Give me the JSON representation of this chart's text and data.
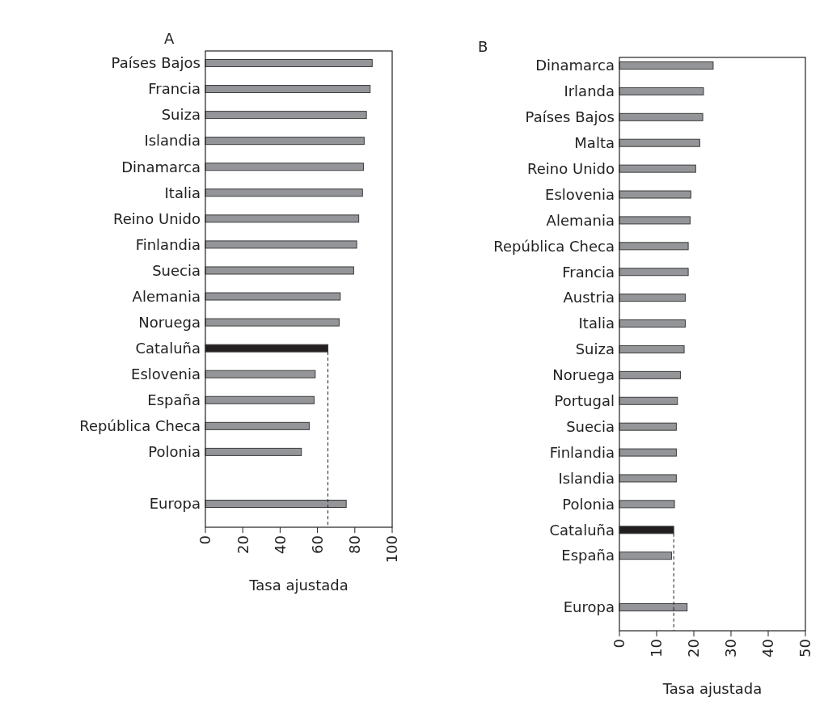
{
  "chart_data": [
    {
      "type": "bar",
      "orientation": "horizontal",
      "title": "A",
      "xlabel": "Tasa ajustada",
      "categories": [
        "Países Bajos",
        "Francia",
        "Suiza",
        "Islandia",
        "Dinamarca",
        "Italia",
        "Reino Unido",
        "Finlandia",
        "Suecia",
        "Alemania",
        "Noruega",
        "Cataluña",
        "Eslovenia",
        "España",
        "República Checa",
        "Polonia",
        null,
        "Europa"
      ],
      "values": [
        89.3,
        88.2,
        86.2,
        85.0,
        84.6,
        84.1,
        82.1,
        81.0,
        79.4,
        72.2,
        71.6,
        65.6,
        58.8,
        58.2,
        55.6,
        51.4,
        null,
        75.4
      ],
      "colors": [
        "#939598",
        "#939598",
        "#939598",
        "#939598",
        "#939598",
        "#939598",
        "#939598",
        "#939598",
        "#939598",
        "#939598",
        "#939598",
        "#231f20",
        "#939598",
        "#939598",
        "#939598",
        "#939598",
        "#939598",
        "#939598"
      ],
      "xlim": [
        0,
        100
      ],
      "xticks": [
        0,
        20,
        40,
        60,
        80,
        100
      ],
      "ref_lines": [
        {
          "axis": "x",
          "value": 65.6,
          "line_style": "dashed",
          "color": "#231f20"
        }
      ]
    },
    {
      "type": "bar",
      "orientation": "horizontal",
      "title": "B",
      "xlabel": "Tasa ajustada",
      "categories": [
        "Dinamarca",
        "Irlanda",
        "Países Bajos",
        "Malta",
        "Reino Unido",
        "Eslovenia",
        "Alemania",
        "República Checa",
        "Francia",
        "Austria",
        "Italia",
        "Suiza",
        "Noruega",
        "Portugal",
        "Suecia",
        "Finlandia",
        "Islandia",
        "Polonia",
        "Cataluña",
        "España",
        null,
        "Europa"
      ],
      "values": [
        25.2,
        22.6,
        22.4,
        21.6,
        20.5,
        19.2,
        19.0,
        18.5,
        18.5,
        17.7,
        17.7,
        17.4,
        16.4,
        15.6,
        15.3,
        15.3,
        15.3,
        14.8,
        14.6,
        14.0,
        null,
        18.2
      ],
      "colors": [
        "#939598",
        "#939598",
        "#939598",
        "#939598",
        "#939598",
        "#939598",
        "#939598",
        "#939598",
        "#939598",
        "#939598",
        "#939598",
        "#939598",
        "#939598",
        "#939598",
        "#939598",
        "#939598",
        "#939598",
        "#939598",
        "#231f20",
        "#939598",
        "#939598",
        "#939598"
      ],
      "xlim": [
        0,
        50
      ],
      "xticks": [
        0,
        10,
        20,
        30,
        40,
        50
      ],
      "ref_lines": [
        {
          "axis": "x",
          "value": 14.6,
          "line_style": "dashed",
          "color": "#231f20"
        }
      ]
    }
  ]
}
